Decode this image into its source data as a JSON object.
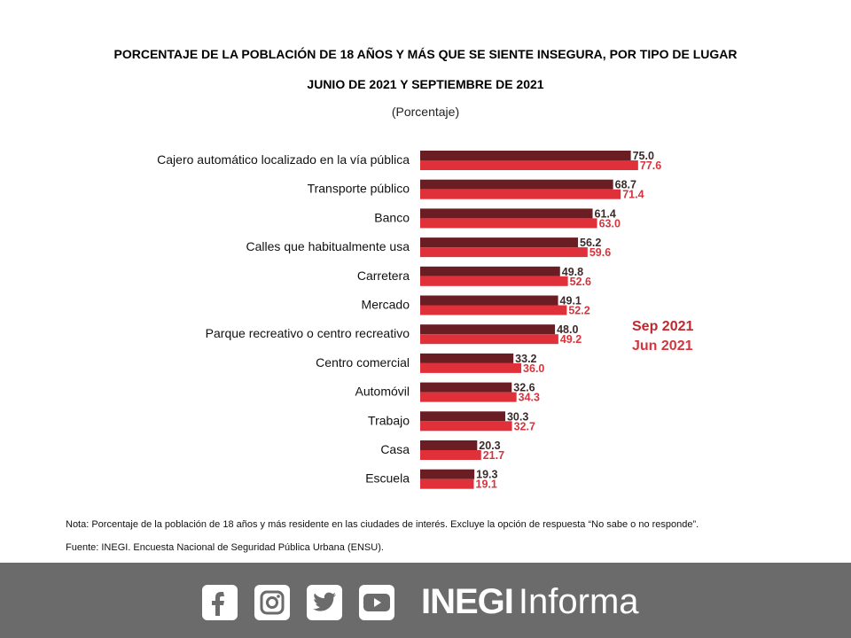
{
  "header": {
    "title": "PORCENTAJE DE LA POBLACIÓN DE 18 AÑOS Y MÁS QUE SE SIENTE INSEGURA, POR TIPO DE LUGAR",
    "subtitle": "JUNIO DE 2021 Y SEPTIEMBRE DE 2021",
    "unit": "(Porcentaje)"
  },
  "chart_data": {
    "type": "bar",
    "orientation": "horizontal",
    "categories": [
      "Cajero automático localizado en la vía pública",
      "Transporte público",
      "Banco",
      "Calles que habitualmente usa",
      "Carretera",
      "Mercado",
      "Parque recreativo o centro recreativo",
      "Centro comercial",
      "Automóvil",
      "Trabajo",
      "Casa",
      "Escuela"
    ],
    "series": [
      {
        "name": "Sep 2021",
        "color": "#6b1d24",
        "values": [
          75.0,
          68.7,
          61.4,
          56.2,
          49.8,
          49.1,
          48.0,
          33.2,
          32.6,
          30.3,
          20.3,
          19.3
        ],
        "labels": [
          "75.0",
          "68.7",
          "61.4",
          "56.2",
          "49.8",
          "49.1",
          "48.0",
          "33.2",
          "32.6",
          "30.3",
          "20.3",
          "19.3"
        ]
      },
      {
        "name": "Jun 2021",
        "color": "#e0303a",
        "values": [
          77.6,
          71.4,
          63.0,
          59.6,
          52.6,
          52.2,
          49.2,
          36.0,
          34.3,
          32.7,
          21.7,
          19.1
        ],
        "labels": [
          "77.6",
          "71.4",
          "63.0",
          "59.6",
          "52.6",
          "52.2",
          "49.2",
          "36.0",
          "34.3",
          "32.7",
          "21.7",
          "19.1"
        ]
      }
    ],
    "xlim": [
      0,
      100
    ],
    "legend": "right",
    "grid": false,
    "label_colors": {
      "Sep 2021": "#3a2a2a",
      "Jun 2021": "#d6353d"
    },
    "legend_colors": {
      "Sep 2021": "#c0282f",
      "Jun 2021": "#d6353d"
    }
  },
  "notes": {
    "nota": "Nota: Porcentaje de la población de 18 años y más residente en las ciudades de interés. Excluye la opción de respuesta “No sabe o no responde”.",
    "fuente": "Fuente: INEGI. Encuesta Nacional de Seguridad Pública Urbana (ENSU)."
  },
  "footer": {
    "social_icons": [
      "facebook-icon",
      "instagram-icon",
      "twitter-icon",
      "youtube-icon"
    ],
    "brand_bold": "INEGI",
    "brand_light": "Informa",
    "background": "#6b6b6b"
  }
}
